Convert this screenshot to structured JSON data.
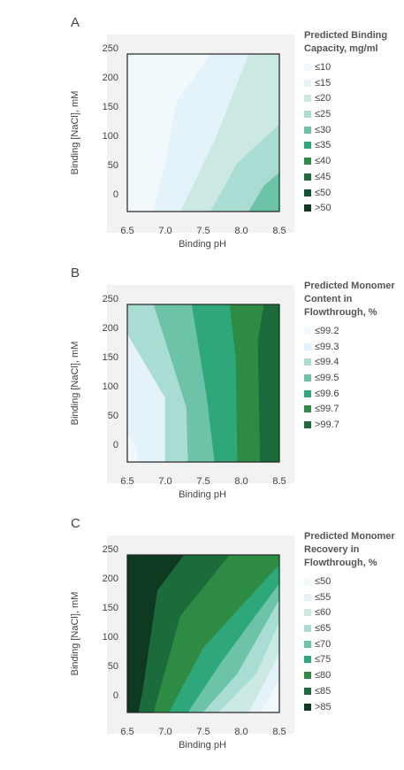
{
  "figure": {
    "panels": [
      {
        "letter": "A",
        "xlabel": "Binding pH",
        "ylabel": "Binding [NaCl], mM",
        "legend_title": [
          "Predicted Binding",
          "Capacity, mg/ml"
        ],
        "legend": [
          "≤10",
          "≤15",
          "≤20",
          "≤25",
          "≤30",
          "≤35",
          "≤40",
          "≤45",
          "≤50",
          ">50"
        ]
      },
      {
        "letter": "B",
        "xlabel": "Binding pH",
        "ylabel": "Binding [NaCl], mM",
        "legend_title": [
          "Predicted Monomer",
          "Content in",
          "Flowthrough, %"
        ],
        "legend": [
          "≤99.2",
          "≤99.3",
          "≤99.4",
          "≤99.5",
          "≤99.6",
          "≤99.7",
          ">99.7"
        ]
      },
      {
        "letter": "C",
        "xlabel": "Binding pH",
        "ylabel": "Binding [NaCl], mM",
        "legend_title": [
          "Predicted Monomer",
          "Recovery in",
          "Flowthrough, %"
        ],
        "legend": [
          "≤50",
          "≤55",
          "≤60",
          "≤65",
          "≤70",
          "≤75",
          "≤80",
          "≤85",
          ">85"
        ]
      }
    ]
  },
  "chart_data": [
    {
      "type": "contour",
      "title": "Predicted Binding Capacity, mg/ml",
      "xlabel": "Binding pH",
      "ylabel": "Binding [NaCl], mM",
      "xlim": [
        6.5,
        8.5
      ],
      "ylim": [
        0,
        245
      ],
      "xticks": [
        "6.5",
        "7.0",
        "7.5",
        "8.0",
        "8.5"
      ],
      "yticks": [
        "0",
        "50",
        "100",
        "150",
        "200",
        "250"
      ],
      "levels": [
        "≤10",
        "≤15",
        "≤20",
        "≤25",
        "≤30",
        "≤35",
        "≤40",
        "≤45",
        "≤50",
        ">50"
      ],
      "colors": [
        "#f2f9fc",
        "#e4f3fa",
        "#cbe9e2",
        "#a9dcd3",
        "#6cc3a8",
        "#2ea77b",
        "#2d8b44",
        "#1c6b3a",
        "#135430",
        "#0e3a22"
      ],
      "regions": [
        {
          "level": 0,
          "points": [
            [
              6.5,
              0
            ],
            [
              6.85,
              0
            ],
            [
              7.0,
              75
            ],
            [
              7.15,
              170
            ],
            [
              7.6,
              245
            ],
            [
              6.5,
              245
            ]
          ]
        },
        {
          "level": 1,
          "points": [
            [
              6.85,
              0
            ],
            [
              7.2,
              0
            ],
            [
              7.65,
              110
            ],
            [
              8.1,
              245
            ],
            [
              7.6,
              245
            ],
            [
              7.15,
              170
            ],
            [
              7.0,
              75
            ]
          ]
        },
        {
          "level": 2,
          "points": [
            [
              7.2,
              0
            ],
            [
              7.6,
              0
            ],
            [
              7.95,
              75
            ],
            [
              8.5,
              135
            ],
            [
              8.5,
              245
            ],
            [
              8.1,
              245
            ],
            [
              7.65,
              110
            ]
          ]
        },
        {
          "level": 3,
          "points": [
            [
              7.6,
              0
            ],
            [
              8.1,
              0
            ],
            [
              8.3,
              40
            ],
            [
              8.5,
              60
            ],
            [
              8.5,
              135
            ],
            [
              7.95,
              75
            ]
          ]
        },
        {
          "level": 4,
          "points": [
            [
              8.1,
              0
            ],
            [
              8.5,
              0
            ],
            [
              8.5,
              60
            ],
            [
              8.3,
              40
            ]
          ]
        }
      ]
    },
    {
      "type": "contour",
      "title": "Predicted Monomer Content in Flowthrough, %",
      "xlabel": "Binding pH",
      "ylabel": "Binding [NaCl], mM",
      "xlim": [
        6.5,
        8.5
      ],
      "ylim": [
        0,
        245
      ],
      "xticks": [
        "6.5",
        "7.0",
        "7.5",
        "8.0",
        "8.5"
      ],
      "yticks": [
        "0",
        "50",
        "100",
        "150",
        "200",
        "250"
      ],
      "levels": [
        "≤99.2",
        "≤99.3",
        "≤99.4",
        "≤99.5",
        "≤99.6",
        "≤99.7",
        ">99.7"
      ],
      "colors": [
        "#f2f9fc",
        "#e4f3fa",
        "#a9dcd3",
        "#6cc3a8",
        "#2ea77b",
        "#2d8b44",
        "#1c6b3a"
      ],
      "regions": [
        {
          "level": 0,
          "points": [
            [
              6.5,
              0
            ],
            [
              6.65,
              0
            ],
            [
              6.6,
              30
            ],
            [
              6.5,
              45
            ]
          ]
        },
        {
          "level": 1,
          "points": [
            [
              6.65,
              0
            ],
            [
              7.0,
              0
            ],
            [
              7.0,
              100
            ],
            [
              6.5,
              200
            ],
            [
              6.5,
              45
            ],
            [
              6.6,
              30
            ]
          ]
        },
        {
          "level": 2,
          "points": [
            [
              7.0,
              0
            ],
            [
              7.3,
              0
            ],
            [
              7.28,
              85
            ],
            [
              6.85,
              245
            ],
            [
              6.5,
              245
            ],
            [
              6.5,
              200
            ],
            [
              7.0,
              100
            ]
          ]
        },
        {
          "level": 3,
          "points": [
            [
              7.3,
              0
            ],
            [
              7.65,
              0
            ],
            [
              7.55,
              100
            ],
            [
              7.35,
              245
            ],
            [
              6.85,
              245
            ],
            [
              7.28,
              85
            ]
          ]
        },
        {
          "level": 4,
          "points": [
            [
              7.65,
              0
            ],
            [
              7.95,
              0
            ],
            [
              7.93,
              160
            ],
            [
              7.85,
              245
            ],
            [
              7.35,
              245
            ],
            [
              7.55,
              100
            ]
          ]
        },
        {
          "level": 5,
          "points": [
            [
              7.95,
              0
            ],
            [
              8.25,
              0
            ],
            [
              8.22,
              190
            ],
            [
              8.3,
              245
            ],
            [
              7.85,
              245
            ],
            [
              7.93,
              160
            ]
          ]
        },
        {
          "level": 6,
          "points": [
            [
              8.25,
              0
            ],
            [
              8.5,
              0
            ],
            [
              8.5,
              245
            ],
            [
              8.3,
              245
            ],
            [
              8.22,
              190
            ]
          ]
        }
      ]
    },
    {
      "type": "contour",
      "title": "Predicted Monomer Recovery in Flowthrough, %",
      "xlabel": "Binding pH",
      "ylabel": "Binding [NaCl], mM",
      "xlim": [
        6.5,
        8.5
      ],
      "ylim": [
        0,
        245
      ],
      "xticks": [
        "6.5",
        "7.0",
        "7.5",
        "8.0",
        "8.5"
      ],
      "yticks": [
        "0",
        "50",
        "100",
        "150",
        "200",
        "250"
      ],
      "levels": [
        "≤50",
        "≤55",
        "≤60",
        "≤65",
        "≤70",
        "≤75",
        "≤80",
        "≤85",
        ">85"
      ],
      "colors": [
        "#f2f9fc",
        "#e4f3fa",
        "#cbe9e2",
        "#a9dcd3",
        "#6cc3a8",
        "#2ea77b",
        "#2d8b44",
        "#1c6b3a",
        "#0e3a22"
      ],
      "regions": [
        {
          "level": 8,
          "points": [
            [
              6.5,
              0
            ],
            [
              6.65,
              0
            ],
            [
              6.7,
              30
            ],
            [
              6.9,
              190
            ],
            [
              7.25,
              245
            ],
            [
              6.5,
              245
            ]
          ]
        },
        {
          "level": 7,
          "points": [
            [
              6.65,
              0
            ],
            [
              6.85,
              0
            ],
            [
              7.2,
              150
            ],
            [
              7.85,
              245
            ],
            [
              7.25,
              245
            ],
            [
              6.9,
              190
            ],
            [
              6.7,
              30
            ]
          ]
        },
        {
          "level": 6,
          "points": [
            [
              6.85,
              0
            ],
            [
              7.05,
              0
            ],
            [
              7.5,
              100
            ],
            [
              8.5,
              230
            ],
            [
              8.5,
              245
            ],
            [
              7.85,
              245
            ],
            [
              7.2,
              150
            ]
          ]
        },
        {
          "level": 5,
          "points": [
            [
              7.05,
              0
            ],
            [
              7.3,
              0
            ],
            [
              7.75,
              80
            ],
            [
              8.5,
              200
            ],
            [
              8.5,
              230
            ],
            [
              7.5,
              100
            ]
          ]
        },
        {
          "level": 4,
          "points": [
            [
              7.3,
              0
            ],
            [
              7.5,
              0
            ],
            [
              7.95,
              60
            ],
            [
              8.5,
              175
            ],
            [
              8.5,
              200
            ],
            [
              7.75,
              80
            ]
          ]
        },
        {
          "level": 3,
          "points": [
            [
              7.5,
              0
            ],
            [
              7.7,
              0
            ],
            [
              8.2,
              60
            ],
            [
              8.5,
              140
            ],
            [
              8.5,
              175
            ],
            [
              7.95,
              60
            ]
          ]
        },
        {
          "level": 2,
          "points": [
            [
              7.7,
              0
            ],
            [
              8.1,
              0
            ],
            [
              8.5,
              90
            ],
            [
              8.5,
              140
            ],
            [
              8.2,
              60
            ]
          ]
        },
        {
          "level": 1,
          "points": [
            [
              8.1,
              0
            ],
            [
              8.25,
              0
            ],
            [
              8.5,
              50
            ],
            [
              8.5,
              90
            ]
          ]
        },
        {
          "level": 0,
          "points": [
            [
              8.25,
              0
            ],
            [
              8.5,
              0
            ],
            [
              8.5,
              50
            ]
          ]
        }
      ]
    }
  ]
}
